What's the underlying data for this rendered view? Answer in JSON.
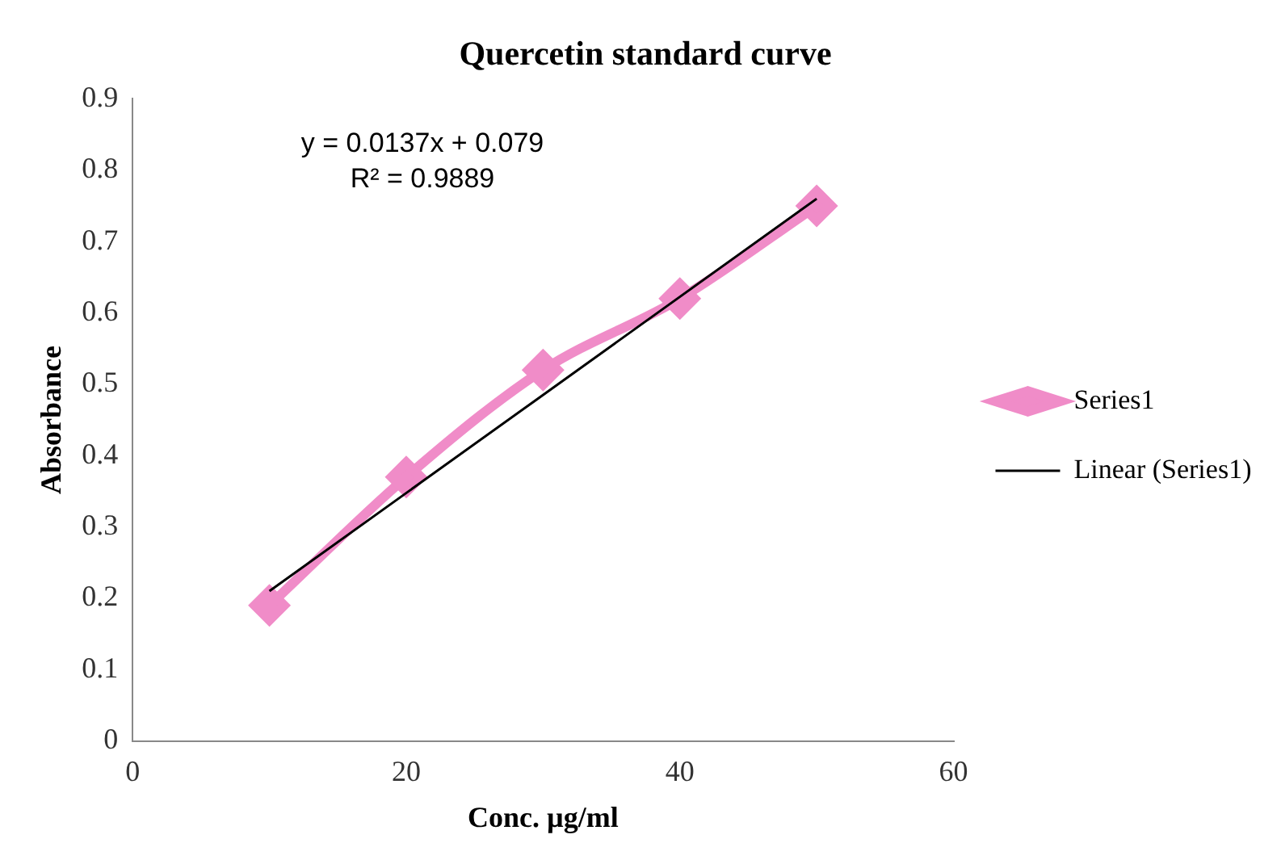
{
  "chart_data": {
    "type": "line",
    "title": "Quercetin standard curve",
    "xlabel": "Conc. µg/ml",
    "ylabel": "Absorbance",
    "series": [
      {
        "name": "Series1",
        "color": "#f08cc8",
        "x": [
          10,
          20,
          30,
          40,
          50
        ],
        "values": [
          0.19,
          0.37,
          0.52,
          0.62,
          0.75
        ],
        "marker": "diamond"
      },
      {
        "name": "Linear (Series1)",
        "color": "#000000",
        "x": [
          10,
          50
        ],
        "values": [
          0.21,
          0.76
        ],
        "marker": "none"
      }
    ],
    "annotations": [
      "y = 0.0137x + 0.079",
      "R² = 0.9889"
    ],
    "xlim": [
      0,
      60
    ],
    "xticks": [
      0,
      20,
      40,
      60
    ],
    "ylim": [
      0,
      0.9
    ],
    "yticks": [
      0,
      0.1,
      0.2,
      0.3,
      0.4,
      0.5,
      0.6,
      0.7,
      0.8,
      0.9
    ],
    "grid": false,
    "legend": "right"
  }
}
